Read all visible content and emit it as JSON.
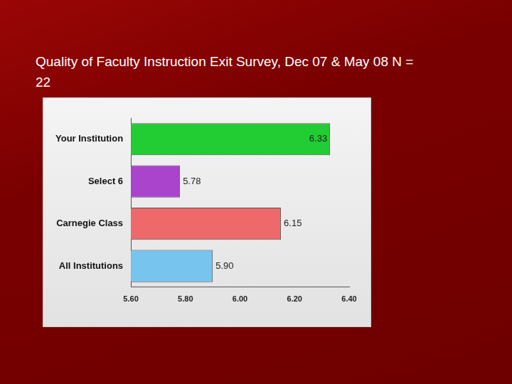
{
  "chart_data": {
    "type": "bar",
    "orientation": "horizontal",
    "title": "Quality of Faculty Instruction Exit Survey, Dec 07 & May 08 N = 22",
    "categories": [
      "Your Institution",
      "Select 6",
      "Carnegie Class",
      "All Institutions"
    ],
    "values": [
      6.33,
      5.78,
      6.15,
      5.9
    ],
    "value_labels": [
      "6.33",
      "5.78",
      "6.15",
      "5.90"
    ],
    "colors": [
      "#22cc33",
      "#aa44cc",
      "#ee6a6a",
      "#77c4ee"
    ],
    "xlim": [
      5.6,
      6.4
    ],
    "xticks": [
      {
        "value": 5.6,
        "label": "5.60"
      },
      {
        "value": 5.8,
        "label": "5.80"
      },
      {
        "value": 6.0,
        "label": "6.00"
      },
      {
        "value": 6.2,
        "label": "6.20"
      },
      {
        "value": 6.4,
        "label": "6.40"
      }
    ],
    "grid": false,
    "data_labels": true
  }
}
